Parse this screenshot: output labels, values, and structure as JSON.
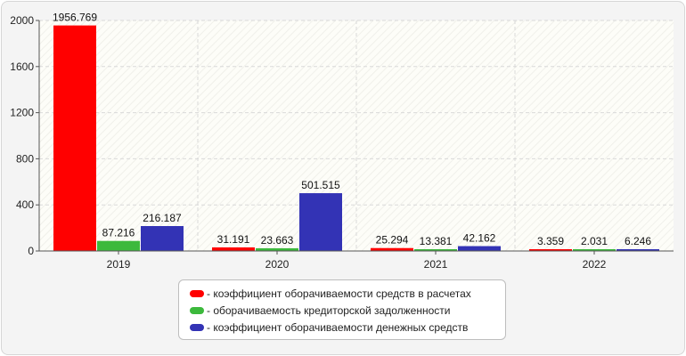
{
  "chart_data": {
    "type": "bar",
    "categories": [
      "2019",
      "2020",
      "2021",
      "2022"
    ],
    "series": [
      {
        "name": "коэффициент оборачиваемости средств в расчетах",
        "color": "#ff0000",
        "values": [
          1956.769,
          31.191,
          25.294,
          3.359
        ],
        "labels": [
          "1956.769",
          "31.191",
          "25.294",
          "3.359"
        ]
      },
      {
        "name": "оборачиваемость кредиторской задолженности",
        "color": "#3cb93c",
        "values": [
          87.216,
          23.663,
          13.381,
          2.031
        ],
        "labels": [
          "87.216",
          "23.663",
          "13.381",
          "2.031"
        ]
      },
      {
        "name": "коэффициент оборачиваемости денежных средств",
        "color": "#3333b5",
        "values": [
          216.187,
          501.515,
          42.162,
          6.246
        ],
        "labels": [
          "216.187",
          "501.515",
          "42.162",
          "6.246"
        ]
      }
    ],
    "ylim": [
      0,
      2000
    ],
    "yticks": [
      "0",
      "400",
      "800",
      "1200",
      "1600",
      "2000"
    ],
    "grid": true,
    "legend_position": "bottom"
  },
  "legend": {
    "items": [
      {
        "label": "- коэффициент оборачиваемости средств в расчетах",
        "color": "#ff0000"
      },
      {
        "label": "- оборачиваемость кредиторской задолженности",
        "color": "#3cb93c"
      },
      {
        "label": "- коэффициент оборачиваемости денежных средств",
        "color": "#3333b5"
      }
    ]
  }
}
